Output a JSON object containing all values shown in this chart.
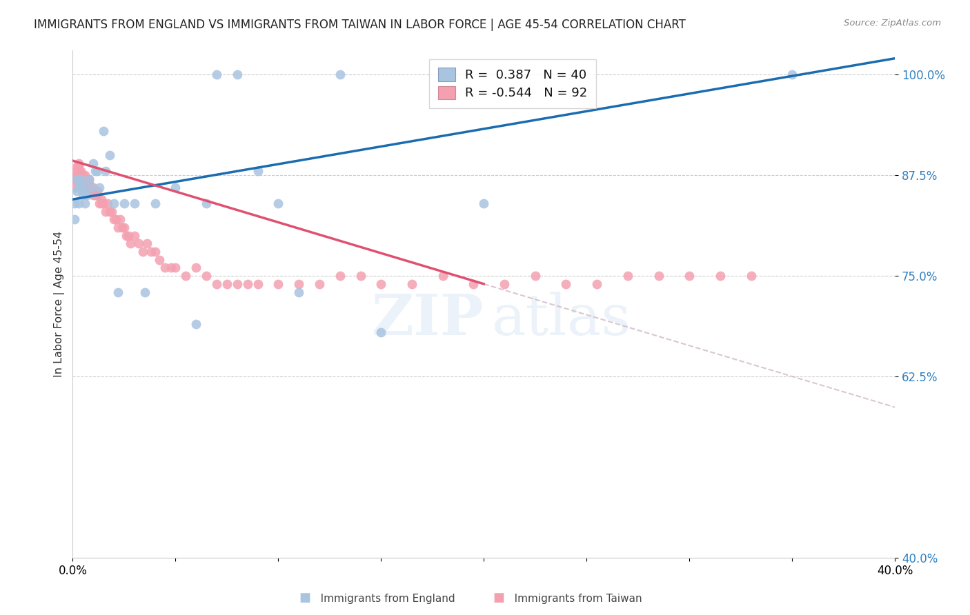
{
  "title": "IMMIGRANTS FROM ENGLAND VS IMMIGRANTS FROM TAIWAN IN LABOR FORCE | AGE 45-54 CORRELATION CHART",
  "source": "Source: ZipAtlas.com",
  "ylabel": "In Labor Force | Age 45-54",
  "xlim": [
    0.0,
    0.4
  ],
  "ylim": [
    0.4,
    1.03
  ],
  "yticks": [
    0.4,
    0.625,
    0.75,
    0.875,
    1.0
  ],
  "ytick_labels": [
    "40.0%",
    "62.5%",
    "75.0%",
    "87.5%",
    "100.0%"
  ],
  "xtick_vals": [
    0.0,
    0.05,
    0.1,
    0.15,
    0.2,
    0.25,
    0.3,
    0.35,
    0.4
  ],
  "xtick_labels": [
    "0.0%",
    "",
    "",
    "",
    "",
    "",
    "",
    "",
    "40.0%"
  ],
  "england_R": 0.387,
  "england_N": 40,
  "taiwan_R": -0.544,
  "taiwan_N": 92,
  "england_color": "#a8c4e0",
  "taiwan_color": "#f4a0b0",
  "england_line_color": "#1a6cb0",
  "taiwan_line_color": "#e05070",
  "england_x": [
    0.001,
    0.001,
    0.002,
    0.002,
    0.003,
    0.003,
    0.004,
    0.004,
    0.005,
    0.005,
    0.005,
    0.006,
    0.007,
    0.008,
    0.009,
    0.01,
    0.011,
    0.012,
    0.013,
    0.015,
    0.016,
    0.018,
    0.02,
    0.022,
    0.025,
    0.03,
    0.035,
    0.04,
    0.05,
    0.06,
    0.065,
    0.07,
    0.08,
    0.09,
    0.1,
    0.11,
    0.13,
    0.15,
    0.2,
    0.35
  ],
  "england_y": [
    0.84,
    0.82,
    0.87,
    0.855,
    0.86,
    0.84,
    0.87,
    0.865,
    0.86,
    0.855,
    0.85,
    0.84,
    0.85,
    0.87,
    0.86,
    0.89,
    0.88,
    0.88,
    0.86,
    0.93,
    0.88,
    0.9,
    0.84,
    0.73,
    0.84,
    0.84,
    0.73,
    0.84,
    0.86,
    0.69,
    0.84,
    1.0,
    1.0,
    0.88,
    0.84,
    0.73,
    1.0,
    0.68,
    0.84,
    1.0
  ],
  "taiwan_x": [
    0.001,
    0.001,
    0.002,
    0.002,
    0.002,
    0.002,
    0.003,
    0.003,
    0.003,
    0.003,
    0.003,
    0.003,
    0.004,
    0.004,
    0.004,
    0.004,
    0.004,
    0.005,
    0.005,
    0.005,
    0.005,
    0.006,
    0.006,
    0.006,
    0.006,
    0.007,
    0.007,
    0.008,
    0.008,
    0.008,
    0.009,
    0.009,
    0.01,
    0.01,
    0.01,
    0.011,
    0.011,
    0.012,
    0.012,
    0.013,
    0.014,
    0.014,
    0.015,
    0.016,
    0.017,
    0.018,
    0.019,
    0.02,
    0.021,
    0.022,
    0.023,
    0.024,
    0.025,
    0.026,
    0.027,
    0.028,
    0.03,
    0.032,
    0.034,
    0.036,
    0.038,
    0.04,
    0.042,
    0.045,
    0.048,
    0.05,
    0.055,
    0.06,
    0.065,
    0.07,
    0.075,
    0.08,
    0.085,
    0.09,
    0.1,
    0.11,
    0.12,
    0.13,
    0.14,
    0.15,
    0.165,
    0.18,
    0.195,
    0.21,
    0.225,
    0.24,
    0.255,
    0.27,
    0.285,
    0.3,
    0.315,
    0.33
  ],
  "taiwan_y": [
    0.87,
    0.86,
    0.885,
    0.88,
    0.875,
    0.87,
    0.89,
    0.885,
    0.88,
    0.875,
    0.87,
    0.865,
    0.88,
    0.875,
    0.87,
    0.865,
    0.86,
    0.875,
    0.87,
    0.865,
    0.86,
    0.875,
    0.87,
    0.865,
    0.86,
    0.87,
    0.865,
    0.87,
    0.865,
    0.86,
    0.86,
    0.855,
    0.86,
    0.855,
    0.85,
    0.855,
    0.85,
    0.855,
    0.85,
    0.84,
    0.845,
    0.84,
    0.84,
    0.83,
    0.84,
    0.83,
    0.83,
    0.82,
    0.82,
    0.81,
    0.82,
    0.81,
    0.81,
    0.8,
    0.8,
    0.79,
    0.8,
    0.79,
    0.78,
    0.79,
    0.78,
    0.78,
    0.77,
    0.76,
    0.76,
    0.76,
    0.75,
    0.76,
    0.75,
    0.74,
    0.74,
    0.74,
    0.74,
    0.74,
    0.74,
    0.74,
    0.74,
    0.75,
    0.75,
    0.74,
    0.74,
    0.75,
    0.74,
    0.74,
    0.75,
    0.74,
    0.74,
    0.75,
    0.75,
    0.75,
    0.75,
    0.75
  ]
}
